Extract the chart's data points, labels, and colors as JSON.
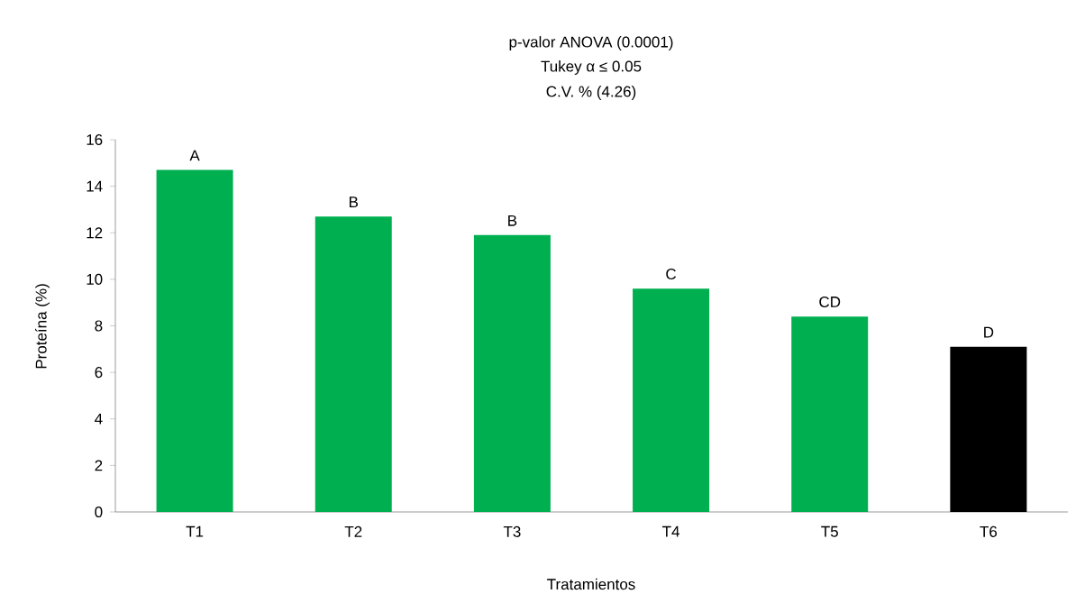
{
  "chart_data": {
    "type": "bar",
    "title": "p-valor ANOVA (0.0001)",
    "subtitle": "Tukey α ≤ 0.05",
    "xlabel": "Tratamientos",
    "ylabel": "Proteína (%)",
    "categories": [
      "T1",
      "T2",
      "T3",
      "T4",
      "T5",
      "T6"
    ],
    "values": [
      14.7,
      12.7,
      11.9,
      9.6,
      8.4,
      7.1
    ],
    "colors": [
      "#00b050",
      "#00b050",
      "#00b050",
      "#00b050",
      "#00b050",
      "#000000"
    ],
    "ylim": [
      0,
      16
    ],
    "yticks": [
      0,
      2,
      4,
      6,
      8,
      10,
      12,
      14,
      16
    ],
    "grid": false,
    "annotations": [
      "C.V. % (4.26)",
      {
        "text": "A",
        "x": "T1",
        "y": 14.7
      },
      {
        "text": "B",
        "x": "T2",
        "y": 12.7
      },
      {
        "text": "B",
        "x": "T3",
        "y": 11.9
      },
      {
        "text": "C",
        "x": "T4",
        "y": 9.6
      },
      {
        "text": "CD",
        "x": "T5",
        "y": 8.4
      },
      {
        "text": "D",
        "x": "T6",
        "y": 7.1
      }
    ]
  }
}
